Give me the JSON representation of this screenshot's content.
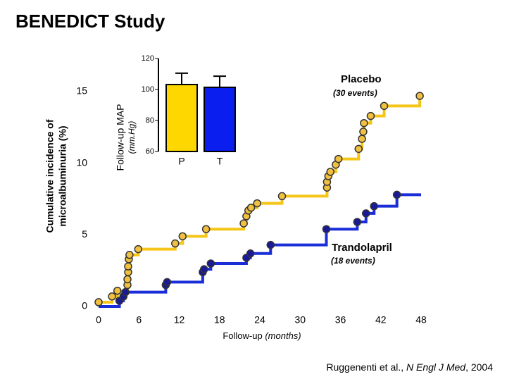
{
  "title": "BENEDICT Study",
  "citation": {
    "authors": "Ruggenenti et al., ",
    "journal": "N Engl J Med",
    "year": ", 2004"
  },
  "chart_data": [
    {
      "type": "step",
      "y_label": [
        "Cumulative incidence of",
        "microalbuminuria (%)"
      ],
      "x_label": "Follow-up",
      "x_label_unit": "(months)",
      "xlim": [
        0,
        48
      ],
      "xticks": [
        0,
        6,
        12,
        18,
        24,
        30,
        36,
        42,
        48
      ],
      "ylim": [
        0,
        15
      ],
      "yticks": [
        0,
        5,
        10,
        15
      ],
      "series": [
        {
          "name": "Placebo",
          "note": "(30 events)",
          "color": "#f5c518",
          "marker_color": "#f0c040",
          "x": [
            0,
            2,
            2.8,
            4.3,
            4.3,
            4.4,
            4.4,
            4.5,
            4.6,
            5.9,
            11.4,
            12.5,
            16,
            21.6,
            22,
            22.3,
            22.7,
            23.6,
            27.3,
            34,
            34,
            34.2,
            34.5,
            35.3,
            35.7,
            38.7,
            39.2,
            39.4,
            39.5,
            40.5,
            42.5,
            47.8
          ],
          "values": [
            0.3,
            0.7,
            1.1,
            1.5,
            1.9,
            2.4,
            2.8,
            3.3,
            3.6,
            4,
            4.4,
            4.9,
            5.4,
            5.8,
            6.3,
            6.7,
            6.9,
            7.2,
            7.7,
            8.3,
            8.7,
            9.1,
            9.4,
            9.9,
            10.3,
            11,
            11.7,
            12.2,
            12.8,
            13.3,
            14,
            14.7
          ]
        },
        {
          "name": "Trandolapril",
          "note": "(18 events)",
          "color": "#1a2ed8",
          "marker_color": "#1a1a99",
          "x": [
            3.1,
            3.7,
            4,
            10,
            10.2,
            15.5,
            15.7,
            16.7,
            22,
            22.6,
            25.6,
            33.9,
            38.5,
            39.8,
            41,
            44.4
          ],
          "values": [
            0.4,
            0.7,
            1,
            1.5,
            1.7,
            2.4,
            2.6,
            3,
            3.4,
            3.7,
            4.3,
            5.4,
            5.9,
            6.5,
            7,
            7.8
          ]
        }
      ]
    },
    {
      "type": "bar",
      "y_label": "Follow-up MAP",
      "y_unit": "(mm.Hg)",
      "categories": [
        "P",
        "T"
      ],
      "values": [
        103.2,
        101.4
      ],
      "errors": [
        7.3,
        7.2
      ],
      "colors": [
        "#ffd700",
        "#0a1ef0"
      ],
      "ylim": [
        60,
        120
      ],
      "yticks": [
        60,
        80,
        100,
        120
      ]
    }
  ]
}
